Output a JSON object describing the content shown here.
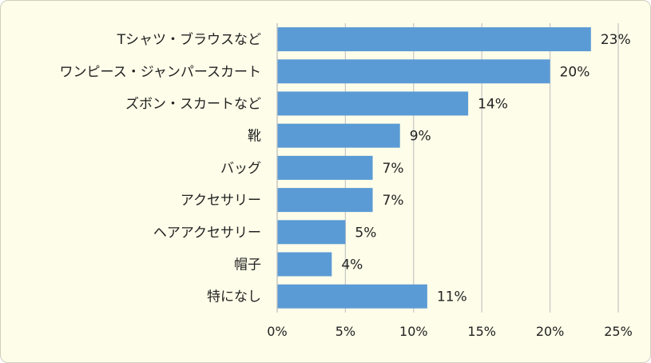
{
  "chart_data": {
    "type": "bar",
    "orientation": "horizontal",
    "categories": [
      "Tシャツ・ブラウスなど",
      "ワンピース・ジャンパースカート",
      "ズボン・スカートなど",
      "靴",
      "バッグ",
      "アクセサリー",
      "ヘアアクセサリー",
      "帽子",
      "特になし"
    ],
    "values": [
      23,
      20,
      14,
      9,
      7,
      7,
      5,
      4,
      11
    ],
    "data_labels": [
      "23%",
      "20%",
      "14%",
      "9%",
      "7%",
      "7%",
      "5%",
      "4%",
      "11%"
    ],
    "xlim": [
      0,
      25
    ],
    "x_ticks": [
      0,
      5,
      10,
      15,
      20,
      25
    ],
    "x_tick_labels": [
      "0%",
      "5%",
      "10%",
      "15%",
      "20%",
      "25%"
    ],
    "title": "",
    "xlabel": "",
    "ylabel": "",
    "grid": "vertical",
    "legend": "none",
    "bar_color": "#5b9bd5",
    "gridline_color": "#c9c9c9",
    "axis_color": "#bfbfbf",
    "background_color": "#fdfde9"
  }
}
